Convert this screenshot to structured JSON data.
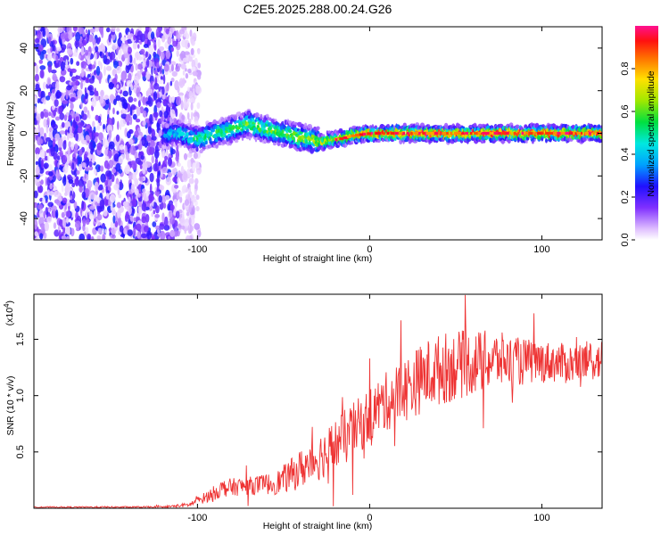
{
  "title": "C2E5.2025.288.00.24.G26",
  "chart_data": [
    {
      "type": "heatmap",
      "title": "C2E5.2025.288.00.24.G26",
      "xlabel": "Height of straight line (km)",
      "ylabel": "Frequency (Hz)",
      "xlim": [
        -195,
        135
      ],
      "ylim": [
        -50,
        50
      ],
      "xticks": [
        -100,
        0,
        100
      ],
      "yticks": [
        -40,
        -20,
        0,
        20,
        40
      ],
      "xtick_labels": [
        "-100",
        "0",
        "100"
      ],
      "ytick_labels": [
        "-40",
        "-20",
        "0",
        "20",
        "40"
      ],
      "colorbar": {
        "label": "Normalized spectral amplitude",
        "range": [
          0,
          1
        ],
        "ticks": [
          0,
          0.2,
          0.4,
          0.6,
          0.8
        ],
        "tick_labels": [
          "0.0",
          "0.2",
          "0.4",
          "0.6",
          "0.8"
        ]
      },
      "noise_region_x": [
        -195,
        -105
      ],
      "ridge": {
        "x": [
          -120,
          -110,
          -100,
          -90,
          -80,
          -70,
          -60,
          -50,
          -40,
          -30,
          -20,
          -10,
          0,
          20,
          40,
          60,
          80,
          100,
          120,
          135
        ],
        "freq": [
          -1,
          0,
          -3,
          0,
          2,
          4,
          2,
          0,
          -2,
          -4,
          -3,
          -1,
          0,
          0,
          0,
          0,
          0,
          0,
          0,
          0
        ],
        "peak": [
          0.35,
          0.45,
          0.5,
          0.55,
          0.55,
          0.6,
          0.6,
          0.6,
          0.65,
          0.7,
          0.75,
          0.8,
          0.85,
          0.9,
          0.9,
          0.9,
          0.9,
          0.9,
          0.9,
          0.9
        ]
      }
    },
    {
      "type": "line",
      "xlabel": "Height of straight line (km)",
      "ylabel": "SNR (10 * v/v)",
      "y_multiplier": "(x10",
      "y_multiplier_exp": "4",
      "y_multiplier_close": ")",
      "xlim": [
        -195,
        135
      ],
      "ylim": [
        0,
        1.9
      ],
      "xticks": [
        -100,
        0,
        100
      ],
      "yticks": [
        0.5,
        1.0,
        1.5
      ],
      "xtick_labels": [
        "-100",
        "0",
        "100"
      ],
      "ytick_labels": [
        "0.5",
        "1.0",
        "1.5"
      ],
      "series": [
        {
          "name": "SNR",
          "color": "#ee3333",
          "envelope_x": [
            -195,
            -120,
            -105,
            -95,
            -85,
            -70,
            -55,
            -45,
            -35,
            -25,
            -15,
            -5,
            5,
            15,
            25,
            35,
            45,
            55,
            65,
            75,
            85,
            95,
            105,
            115,
            125,
            135
          ],
          "envelope_mid": [
            0.01,
            0.01,
            0.03,
            0.1,
            0.18,
            0.2,
            0.22,
            0.3,
            0.4,
            0.5,
            0.62,
            0.75,
            0.9,
            1.0,
            1.1,
            1.2,
            1.25,
            1.28,
            1.3,
            1.32,
            1.3,
            1.3,
            1.3,
            1.28,
            1.3,
            1.32
          ],
          "envelope_amp": [
            0.005,
            0.008,
            0.02,
            0.05,
            0.08,
            0.08,
            0.1,
            0.15,
            0.2,
            0.22,
            0.25,
            0.25,
            0.25,
            0.28,
            0.3,
            0.32,
            0.32,
            0.3,
            0.28,
            0.25,
            0.22,
            0.2,
            0.18,
            0.18,
            0.18,
            0.18
          ]
        }
      ]
    }
  ],
  "colors": {
    "line": "#ee3333",
    "axis": "#000000"
  }
}
